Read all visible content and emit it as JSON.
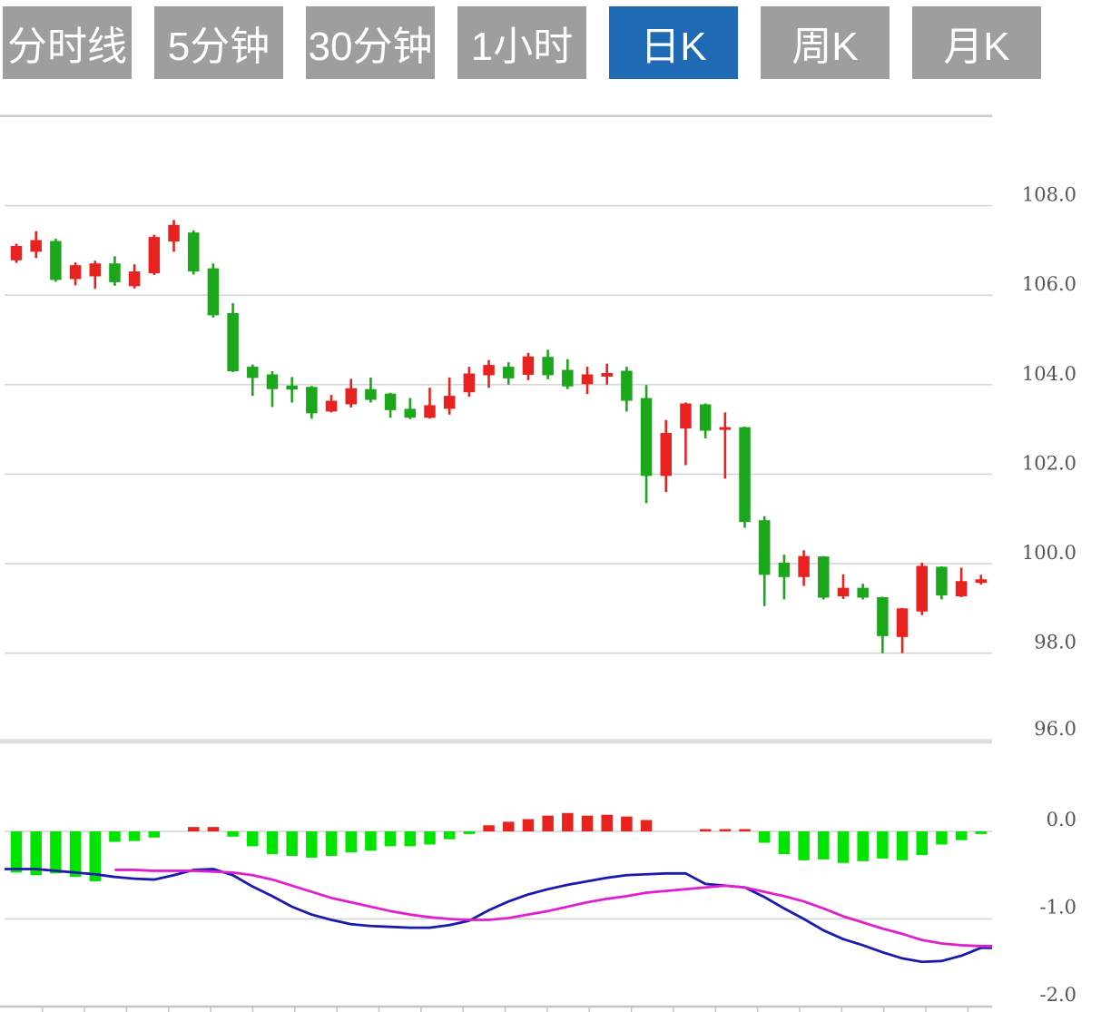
{
  "toolbar": {
    "buttons": [
      {
        "label": "分时线",
        "active": false
      },
      {
        "label": "5分钟",
        "active": false
      },
      {
        "label": "30分钟",
        "active": false
      },
      {
        "label": "1小时",
        "active": false
      },
      {
        "label": "日K",
        "active": true
      },
      {
        "label": "周K",
        "active": false
      },
      {
        "label": "月K",
        "active": false
      }
    ]
  },
  "colors": {
    "button_bg": "#9e9e9e",
    "button_active_bg": "#1e6ab4",
    "candle_up": "#e8231f",
    "candle_down": "#1ca61c",
    "hist_up": "#e8231f",
    "hist_down": "#00e400",
    "dif_line": "#1a1aae",
    "dea_line": "#e020d0",
    "gridline": "#d4d4d4",
    "panel_border": "#cccccc",
    "axis_line": "#c4c4c4",
    "label_text": "#555555"
  },
  "chart_data": {
    "type": "candlestick",
    "title": "",
    "xlabel": "",
    "ylabel": "",
    "grid": true,
    "legend": "none",
    "price_panel": {
      "ylim": [
        96,
        110
      ],
      "axis_side": "right",
      "ticks": [
        {
          "value": 108.0,
          "label": "108.0"
        },
        {
          "value": 106.0,
          "label": "106.0"
        },
        {
          "value": 104.0,
          "label": "104.0"
        },
        {
          "value": 102.0,
          "label": "102.0"
        },
        {
          "value": 100.0,
          "label": "100.0"
        },
        {
          "value": 98.0,
          "label": "98.0"
        },
        {
          "value": 96.0,
          "label": "96.0"
        }
      ],
      "up_color_convention": "red-up-green-down",
      "ohlc": [
        [
          106.78,
          107.15,
          106.72,
          107.1
        ],
        [
          106.97,
          107.43,
          106.83,
          107.23
        ],
        [
          107.21,
          107.26,
          106.3,
          106.34
        ],
        [
          106.36,
          106.73,
          106.22,
          106.67
        ],
        [
          106.42,
          106.77,
          106.14,
          106.71
        ],
        [
          106.71,
          106.87,
          106.21,
          106.29
        ],
        [
          106.2,
          106.69,
          106.15,
          106.53
        ],
        [
          106.49,
          107.35,
          106.45,
          107.3
        ],
        [
          107.2,
          107.68,
          106.97,
          107.57
        ],
        [
          107.4,
          107.45,
          106.46,
          106.53
        ],
        [
          106.6,
          106.71,
          105.5,
          105.55
        ],
        [
          105.6,
          105.82,
          104.28,
          104.3
        ],
        [
          104.4,
          104.45,
          103.75,
          104.15
        ],
        [
          104.23,
          104.3,
          103.5,
          103.9
        ],
        [
          103.98,
          104.17,
          103.6,
          103.89
        ],
        [
          103.95,
          103.97,
          103.24,
          103.36
        ],
        [
          103.4,
          103.77,
          103.38,
          103.64
        ],
        [
          103.56,
          104.13,
          103.49,
          103.92
        ],
        [
          103.9,
          104.16,
          103.6,
          103.66
        ],
        [
          103.8,
          103.82,
          103.26,
          103.43
        ],
        [
          103.46,
          103.7,
          103.23,
          103.26
        ],
        [
          103.26,
          103.93,
          103.24,
          103.54
        ],
        [
          103.46,
          104.16,
          103.33,
          103.75
        ],
        [
          103.83,
          104.4,
          103.73,
          104.25
        ],
        [
          104.21,
          104.55,
          103.93,
          104.44
        ],
        [
          104.4,
          104.5,
          104.0,
          104.14
        ],
        [
          104.22,
          104.71,
          104.1,
          104.63
        ],
        [
          104.62,
          104.78,
          104.12,
          104.21
        ],
        [
          104.33,
          104.57,
          103.9,
          103.96
        ],
        [
          104.01,
          104.4,
          103.79,
          104.23
        ],
        [
          104.18,
          104.47,
          104.0,
          104.26
        ],
        [
          104.31,
          104.4,
          103.4,
          103.64
        ],
        [
          103.7,
          103.99,
          101.35,
          101.96
        ],
        [
          101.96,
          103.21,
          101.6,
          102.92
        ],
        [
          103.02,
          103.6,
          102.2,
          103.58
        ],
        [
          103.56,
          103.58,
          102.8,
          102.97
        ],
        [
          102.99,
          103.38,
          101.9,
          103.05
        ],
        [
          103.05,
          103.06,
          100.8,
          100.93
        ],
        [
          100.97,
          101.06,
          99.05,
          99.75
        ],
        [
          100.02,
          100.2,
          99.2,
          99.7
        ],
        [
          99.7,
          100.3,
          99.5,
          100.17
        ],
        [
          100.16,
          100.17,
          99.2,
          99.24
        ],
        [
          99.27,
          99.76,
          99.21,
          99.46
        ],
        [
          99.46,
          99.55,
          99.2,
          99.24
        ],
        [
          99.25,
          99.26,
          98.0,
          98.38
        ],
        [
          98.36,
          99.01,
          98.0,
          99.0
        ],
        [
          98.93,
          100.02,
          98.85,
          99.95
        ],
        [
          99.93,
          99.94,
          99.2,
          99.29
        ],
        [
          99.27,
          99.91,
          99.25,
          99.61
        ],
        [
          99.57,
          99.75,
          99.53,
          99.65
        ]
      ]
    },
    "macd_panel": {
      "ylim": [
        -2,
        0.4
      ],
      "axis_side": "right",
      "ticks": [
        {
          "value": 0.0,
          "label": "0.0"
        },
        {
          "value": -1.0,
          "label": "-1.0"
        },
        {
          "value": -2.0,
          "label": "-2.0"
        }
      ],
      "histogram": [
        -0.47,
        -0.5,
        -0.48,
        -0.52,
        -0.57,
        -0.12,
        -0.11,
        -0.07,
        0,
        0.05,
        0.05,
        -0.06,
        -0.17,
        -0.26,
        -0.28,
        -0.3,
        -0.28,
        -0.24,
        -0.22,
        -0.17,
        -0.17,
        -0.15,
        -0.09,
        -0.03,
        0.07,
        0.11,
        0.14,
        0.18,
        0.21,
        0.18,
        0.19,
        0.17,
        0.13,
        0,
        0,
        0.02,
        0.02,
        0.02,
        -0.13,
        -0.26,
        -0.33,
        -0.32,
        -0.36,
        -0.34,
        -0.31,
        -0.33,
        -0.27,
        -0.15,
        -0.1,
        -0.03
      ],
      "dif": [
        -0.43,
        -0.43,
        -0.45,
        -0.47,
        -0.49,
        -0.52,
        -0.54,
        -0.55,
        -0.5,
        -0.44,
        -0.43,
        -0.5,
        -0.63,
        -0.74,
        -0.86,
        -0.95,
        -1.01,
        -1.06,
        -1.08,
        -1.09,
        -1.1,
        -1.1,
        -1.07,
        -1.02,
        -0.9,
        -0.8,
        -0.72,
        -0.66,
        -0.61,
        -0.57,
        -0.53,
        -0.5,
        -0.49,
        -0.48,
        -0.48,
        -0.6,
        -0.62,
        -0.64,
        -0.75,
        -0.88,
        -1.0,
        -1.13,
        -1.23,
        -1.3,
        -1.38,
        -1.45,
        -1.49,
        -1.48,
        -1.42,
        -1.33
      ],
      "dea": [
        null,
        null,
        null,
        null,
        null,
        -0.44,
        -0.44,
        -0.45,
        -0.45,
        -0.45,
        -0.46,
        -0.47,
        -0.5,
        -0.55,
        -0.62,
        -0.69,
        -0.76,
        -0.81,
        -0.86,
        -0.91,
        -0.95,
        -0.98,
        -1.0,
        -1.01,
        -1.01,
        -0.99,
        -0.95,
        -0.91,
        -0.86,
        -0.81,
        -0.77,
        -0.74,
        -0.7,
        -0.68,
        -0.66,
        -0.64,
        -0.62,
        -0.64,
        -0.69,
        -0.74,
        -0.8,
        -0.88,
        -0.97,
        -1.04,
        -1.11,
        -1.17,
        -1.24,
        -1.28,
        -1.3,
        -1.31
      ]
    }
  }
}
